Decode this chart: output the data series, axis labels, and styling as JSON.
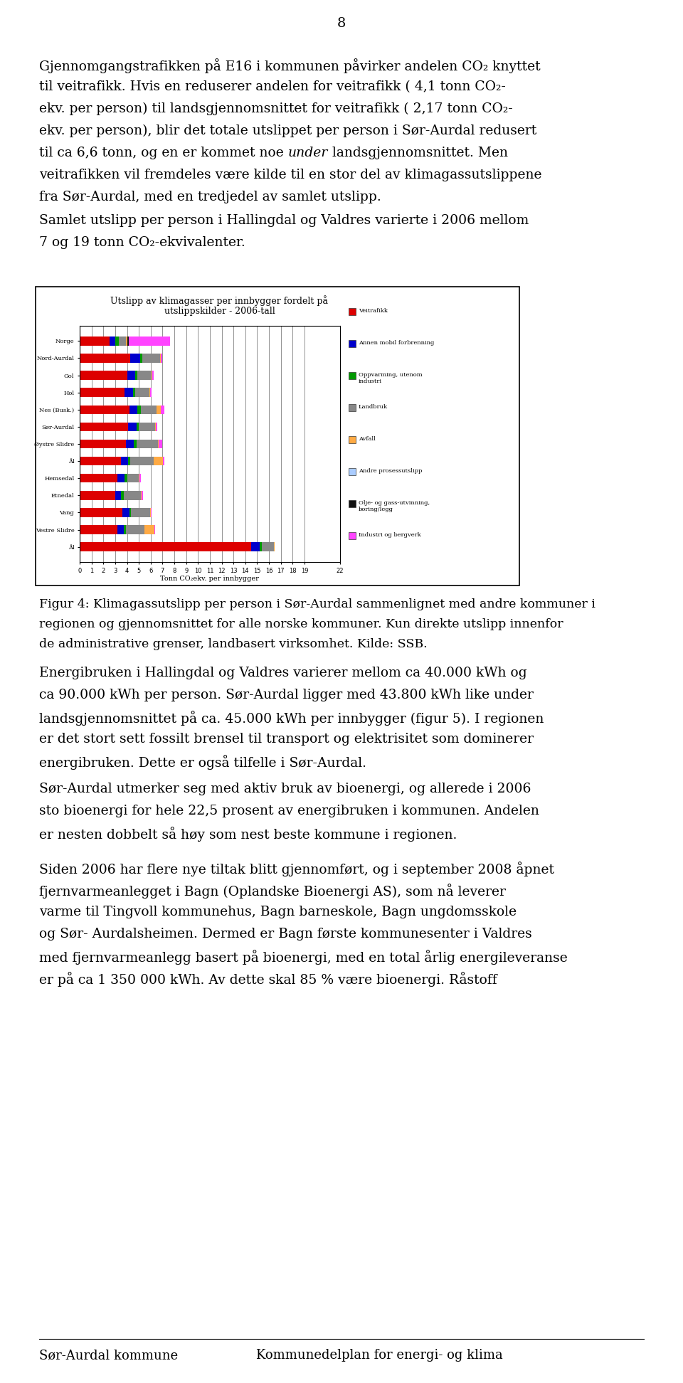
{
  "page_number": "8",
  "background_color": "#ffffff",
  "text_color": "#000000",
  "chart_title_line1": "Utslipp av klimagasser per innbygger fordelt på",
  "chart_title_line2": "utslippskilder - 2006-tall",
  "chart_xlabel": "Tonn CO₂ekv. per innbygger",
  "chart_categories": [
    "Norge",
    "Nord-Aurdal",
    "Gol",
    "Hol",
    "Nes (Busk.)",
    "Sør-Aurdal",
    "Øystre Slidre",
    "Ål",
    "Hemsedal",
    "Etnedal",
    "Vang",
    "Vestre Slidre",
    "Ål"
  ],
  "legend_labels": [
    "Veitrafikk",
    "Annen mobil forbrenning",
    "Oppvarming, utenom\nindustri",
    "Landbruk",
    "Avfall",
    "Andre prosessutslipp",
    "Olje- og gass-utvinning,\nboring/legg",
    "Industri og bergverk"
  ],
  "bar_colors": [
    "#dd0000",
    "#0000cc",
    "#009900",
    "#888888",
    "#ffaa44",
    "#aaccff",
    "#111111",
    "#ff44ff"
  ],
  "bar_segments": [
    [
      2.5,
      4.3,
      4.0,
      3.8,
      4.2,
      4.1,
      3.9,
      3.5,
      3.2,
      3.0,
      3.6,
      3.2,
      14.5
    ],
    [
      0.5,
      0.8,
      0.7,
      0.7,
      0.7,
      0.7,
      0.7,
      0.6,
      0.6,
      0.5,
      0.6,
      0.5,
      0.7
    ],
    [
      0.3,
      0.2,
      0.2,
      0.2,
      0.3,
      0.2,
      0.2,
      0.15,
      0.2,
      0.2,
      0.15,
      0.2,
      0.2
    ],
    [
      0.6,
      1.5,
      1.2,
      1.2,
      1.3,
      1.4,
      1.8,
      2.0,
      1.0,
      1.5,
      1.6,
      1.6,
      1.0
    ],
    [
      0.1,
      0.05,
      0.05,
      0.05,
      0.35,
      0.05,
      0.05,
      0.8,
      0.05,
      0.05,
      0.05,
      0.8,
      0.05
    ],
    [
      0.05,
      0.0,
      0.0,
      0.0,
      0.0,
      0.0,
      0.0,
      0.0,
      0.0,
      0.0,
      0.0,
      0.0,
      0.0
    ],
    [
      0.1,
      0.0,
      0.0,
      0.0,
      0.0,
      0.0,
      0.0,
      0.0,
      0.0,
      0.0,
      0.0,
      0.0,
      0.0
    ],
    [
      3.5,
      0.1,
      0.1,
      0.1,
      0.05,
      0.05,
      0.1,
      0.05,
      0.1,
      0.1,
      0.1,
      0.1,
      0.05
    ]
  ],
  "footer_left": "Sør-Aurdal kommune",
  "footer_right": "Kommunedelplan for energi- og klima"
}
